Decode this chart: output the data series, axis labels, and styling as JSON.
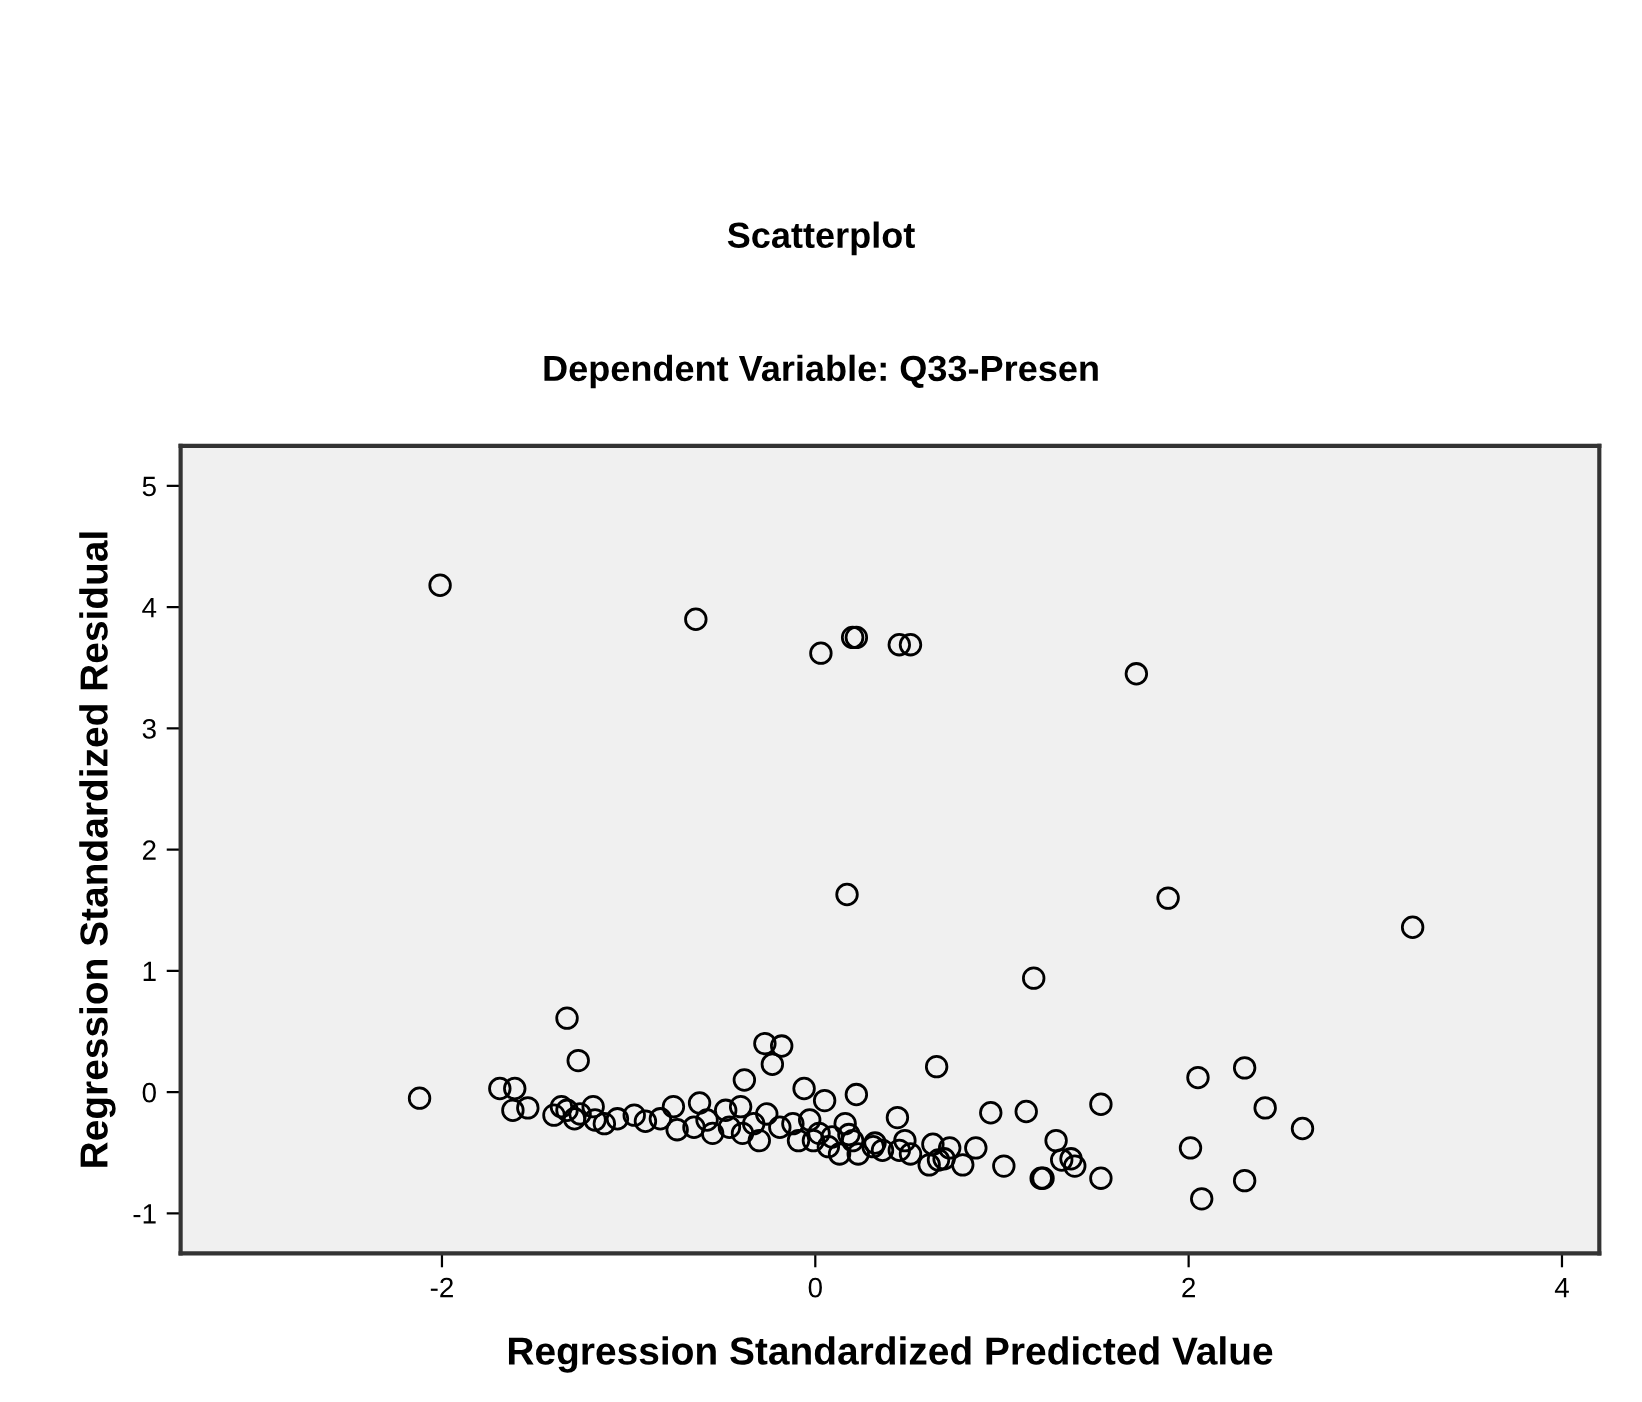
{
  "chart_data": {
    "type": "scatter",
    "title": "Scatterplot",
    "subtitle": "Dependent Variable: Q33-Presen",
    "xlabel": "Regression Standardized Predicted Value",
    "ylabel": "Regression Standardized Residual",
    "xlim": [
      -3.4,
      4.2
    ],
    "ylim": [
      -1.33,
      5.33
    ],
    "xticks": [
      -2,
      0,
      2,
      4
    ],
    "yticks": [
      -1,
      0,
      1,
      2,
      3,
      4,
      5
    ],
    "grid": false,
    "legend": false,
    "marker": "circle",
    "series": [
      {
        "color": "#000000",
        "x": [
          -2.01,
          -0.64,
          0.03,
          0.2,
          0.22,
          0.45,
          0.51,
          1.72,
          1.89,
          3.2,
          2.05,
          2.3,
          2.41,
          2.61,
          2.01,
          2.3,
          2.07,
          0.17,
          1.17,
          0.65,
          0.94,
          1.53,
          1.13,
          1.53,
          1.29,
          1.32,
          1.37,
          1.39,
          1.21,
          1.22,
          1.01,
          0.86,
          0.79,
          0.72,
          0.63,
          0.61,
          0.66,
          0.69,
          0.48,
          0.44,
          0.51,
          0.45,
          0.36,
          0.31,
          0.23,
          0.22,
          0.05,
          -0.06,
          0.16,
          0.18,
          0.07,
          0.13,
          -0.03,
          -0.01,
          -2.12,
          -1.33,
          -1.27,
          -1.69,
          -1.61,
          -1.62,
          -1.54,
          -0.27,
          -0.18,
          -0.23,
          -0.38,
          -1.4,
          -1.36,
          -1.33,
          -1.29,
          -1.26,
          -1.19,
          -1.18,
          -1.13,
          -1.06,
          -0.97,
          -0.91,
          -0.83,
          -0.76,
          -0.74,
          -0.65,
          -0.62,
          -0.58,
          -0.55,
          -0.48,
          -0.46,
          -0.4,
          -0.39,
          -0.33,
          -0.3,
          -0.26,
          -0.19,
          -0.12,
          -0.09,
          0.02,
          0.09,
          0.2,
          0.32
        ],
        "values": [
          4.18,
          3.9,
          3.62,
          3.75,
          3.75,
          3.69,
          3.69,
          3.45,
          1.6,
          1.36,
          0.12,
          0.2,
          -0.13,
          -0.3,
          -0.46,
          -0.73,
          -0.88,
          1.63,
          0.94,
          0.21,
          -0.17,
          -0.1,
          -0.16,
          -0.71,
          -0.4,
          -0.56,
          -0.55,
          -0.61,
          -0.71,
          -0.71,
          -0.61,
          -0.46,
          -0.6,
          -0.46,
          -0.43,
          -0.6,
          -0.56,
          -0.55,
          -0.4,
          -0.21,
          -0.51,
          -0.48,
          -0.48,
          -0.45,
          -0.51,
          -0.02,
          -0.07,
          0.03,
          -0.26,
          -0.35,
          -0.45,
          -0.51,
          -0.23,
          -0.4,
          -0.05,
          0.61,
          0.26,
          0.03,
          0.03,
          -0.15,
          -0.13,
          0.4,
          0.38,
          0.23,
          0.1,
          -0.19,
          -0.12,
          -0.15,
          -0.22,
          -0.18,
          -0.12,
          -0.23,
          -0.26,
          -0.22,
          -0.19,
          -0.24,
          -0.22,
          -0.12,
          -0.31,
          -0.29,
          -0.09,
          -0.23,
          -0.34,
          -0.15,
          -0.29,
          -0.12,
          -0.34,
          -0.26,
          -0.4,
          -0.18,
          -0.29,
          -0.26,
          -0.4,
          -0.34,
          -0.37,
          -0.4,
          -0.42
        ]
      }
    ]
  }
}
